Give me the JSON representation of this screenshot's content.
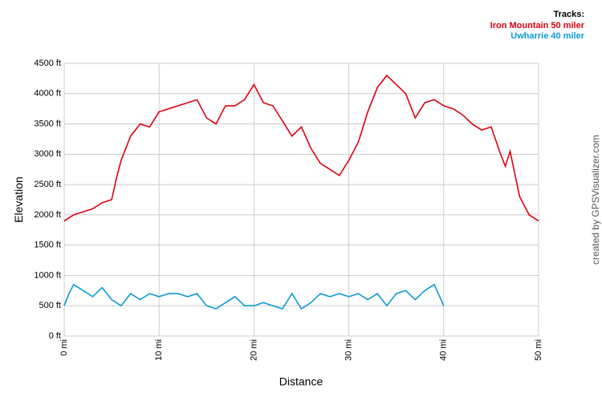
{
  "chart_data": {
    "type": "line",
    "legend_title": "Tracks:",
    "xlabel": "Distance",
    "ylabel": "Elevation",
    "credit": "created by GPSVisualizer.com",
    "xlim": [
      0,
      50
    ],
    "ylim": [
      0,
      4500
    ],
    "xticks": [
      {
        "value": 0,
        "label": "0 mi"
      },
      {
        "value": 10,
        "label": "10 mi"
      },
      {
        "value": 20,
        "label": "20 mi"
      },
      {
        "value": 30,
        "label": "30 mi"
      },
      {
        "value": 40,
        "label": "40 mi"
      },
      {
        "value": 50,
        "label": "50 mi"
      }
    ],
    "yticks": [
      {
        "value": 0,
        "label": "0 ft"
      },
      {
        "value": 500,
        "label": "500 ft"
      },
      {
        "value": 1000,
        "label": "1000 ft"
      },
      {
        "value": 1500,
        "label": "1500 ft"
      },
      {
        "value": 2000,
        "label": "2000 ft"
      },
      {
        "value": 2500,
        "label": "2500 ft"
      },
      {
        "value": 3000,
        "label": "3000 ft"
      },
      {
        "value": 3500,
        "label": "3500 ft"
      },
      {
        "value": 4000,
        "label": "4000 ft"
      },
      {
        "value": 4500,
        "label": "4500 ft"
      }
    ],
    "grid": true,
    "series": [
      {
        "name": "Iron Mountain 50 miler",
        "color": "#e0000f",
        "x": [
          0,
          1,
          2,
          3,
          4,
          5,
          5.5,
          6,
          7,
          8,
          9,
          10,
          11,
          12,
          13,
          14,
          15,
          16,
          17,
          18,
          19,
          20,
          21,
          22,
          23,
          24,
          25,
          26,
          27,
          28,
          29,
          30,
          31,
          32,
          33,
          34,
          35,
          36,
          37,
          38,
          39,
          40,
          41,
          42,
          43,
          44,
          45,
          46,
          46.5,
          47,
          48,
          49,
          50
        ],
        "values": [
          1900,
          2000,
          2050,
          2100,
          2200,
          2250,
          2600,
          2900,
          3300,
          3500,
          3450,
          3700,
          3750,
          3800,
          3850,
          3900,
          3600,
          3500,
          3800,
          3800,
          3900,
          4150,
          3850,
          3800,
          3550,
          3300,
          3450,
          3100,
          2850,
          2750,
          2650,
          2900,
          3200,
          3700,
          4100,
          4300,
          4150,
          4000,
          3600,
          3850,
          3900,
          3800,
          3750,
          3650,
          3500,
          3400,
          3450,
          3000,
          2800,
          3050,
          2300,
          2000,
          1900
        ]
      },
      {
        "name": "Uwharrie 40 miler",
        "color": "#0d9ad8",
        "x": [
          0,
          0.5,
          1,
          2,
          3,
          4,
          5,
          6,
          7,
          8,
          9,
          10,
          11,
          12,
          13,
          14,
          15,
          16,
          17,
          18,
          19,
          20,
          21,
          22,
          23,
          24,
          25,
          26,
          27,
          28,
          29,
          30,
          31,
          32,
          33,
          34,
          35,
          36,
          37,
          38,
          39,
          40
        ],
        "values": [
          500,
          700,
          850,
          750,
          650,
          800,
          600,
          500,
          700,
          600,
          700,
          650,
          700,
          700,
          650,
          700,
          500,
          450,
          550,
          650,
          500,
          500,
          550,
          500,
          450,
          700,
          450,
          550,
          700,
          650,
          700,
          650,
          700,
          600,
          700,
          500,
          700,
          750,
          600,
          750,
          850,
          500
        ]
      }
    ]
  }
}
